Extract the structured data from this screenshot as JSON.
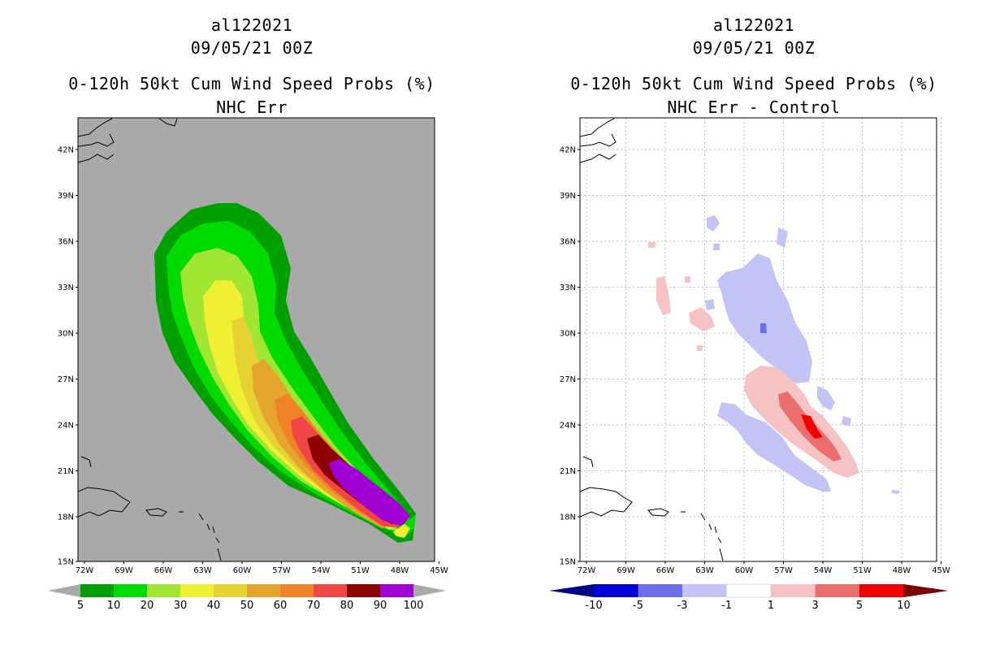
{
  "left_panel": {
    "storm_id": "al122021",
    "datetime": "09/05/21 00Z",
    "product": "0-120h 50kt Cum Wind Speed Probs (%)",
    "subtitle": "NHC Err",
    "background_color": "#a9a9a9",
    "lat_labels": [
      "42N",
      "39N",
      "36N",
      "33N",
      "30N",
      "27N",
      "24N",
      "21N",
      "18N",
      "15N"
    ],
    "lon_labels": [
      "72W",
      "69W",
      "66W",
      "63W",
      "60W",
      "57W",
      "54W",
      "51W",
      "48W",
      "45W"
    ],
    "colorbar": {
      "labels": [
        "5",
        "10",
        "20",
        "30",
        "40",
        "50",
        "60",
        "70",
        "80",
        "90",
        "100"
      ],
      "colors": [
        "#00a000",
        "#00dc00",
        "#a0e632",
        "#f0f032",
        "#e6d232",
        "#e6a52d",
        "#f08228",
        "#f04646",
        "#8c0000",
        "#a000d2"
      ],
      "end_color": "#a9a9a9"
    }
  },
  "right_panel": {
    "storm_id": "al122021",
    "datetime": "09/05/21 00Z",
    "product": "0-120h 50kt Cum Wind Speed Probs (%)",
    "subtitle": "NHC Err - Control",
    "background_color": "#ffffff",
    "lat_labels": [
      "42N",
      "39N",
      "36N",
      "33N",
      "30N",
      "27N",
      "24N",
      "21N",
      "18N",
      "15N"
    ],
    "lon_labels": [
      "72W",
      "69W",
      "66W",
      "63W",
      "60W",
      "57W",
      "54W",
      "51W",
      "48W",
      "45W"
    ],
    "colorbar": {
      "labels": [
        "-10",
        "-5",
        "-3",
        "-1",
        "1",
        "3",
        "5",
        "10"
      ],
      "colors": [
        "#0000dc",
        "#6e6eeb",
        "#c3c3f5",
        "#ffffff",
        "#f5c3c3",
        "#eb6e6e",
        "#f00000"
      ],
      "low_color": "#00008c",
      "high_color": "#7d0000"
    }
  }
}
